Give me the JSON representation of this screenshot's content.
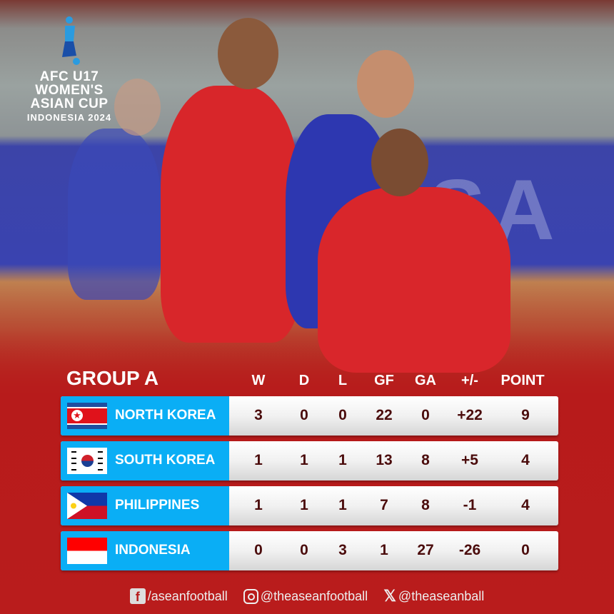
{
  "logo": {
    "line1": "AFC U17",
    "line2": "WOMEN'S",
    "line3": "ASIAN CUP",
    "line4": "INDONESIA 2024"
  },
  "table": {
    "title": "GROUP A",
    "columns": [
      "W",
      "D",
      "L",
      "GF",
      "GA",
      "+/-",
      "POINT"
    ],
    "rows": [
      {
        "team": "NORTH KOREA",
        "flag": "north-korea-flag",
        "values": [
          "3",
          "0",
          "0",
          "22",
          "0",
          "+22",
          "9"
        ]
      },
      {
        "team": "SOUTH KOREA",
        "flag": "south-korea-flag",
        "values": [
          "1",
          "1",
          "1",
          "13",
          "8",
          "+5",
          "4"
        ]
      },
      {
        "team": "PHILIPPINES",
        "flag": "philippines-flag",
        "values": [
          "1",
          "1",
          "1",
          "7",
          "8",
          "-1",
          "4"
        ]
      },
      {
        "team": "INDONESIA",
        "flag": "indonesia-flag",
        "values": [
          "0",
          "0",
          "3",
          "1",
          "27",
          "-26",
          "0"
        ]
      }
    ]
  },
  "footer": {
    "facebook": "/aseanfootball",
    "instagram": "@theaseanfootball",
    "x": "@theaseanball"
  },
  "colors": {
    "team_cell": "#0aaef5",
    "value_text": "#4b0c0c",
    "background_red": "#b71b1b"
  }
}
